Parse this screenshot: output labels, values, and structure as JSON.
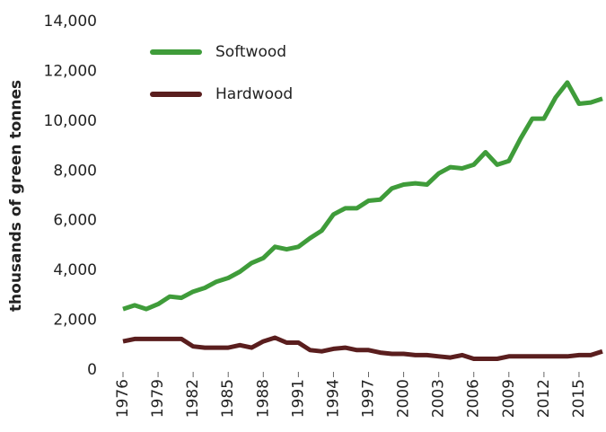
{
  "chart_data": {
    "type": "line",
    "y_label": "thousands of green tonnes",
    "x": [
      1976,
      1977,
      1978,
      1979,
      1980,
      1981,
      1982,
      1983,
      1984,
      1985,
      1986,
      1987,
      1988,
      1989,
      1990,
      1991,
      1992,
      1993,
      1994,
      1995,
      1996,
      1997,
      1998,
      1999,
      2000,
      2001,
      2002,
      2003,
      2004,
      2005,
      2006,
      2007,
      2008,
      2009,
      2010,
      2011,
      2012,
      2013,
      2014,
      2015,
      2016,
      2017
    ],
    "series": [
      {
        "name": "Softwood",
        "color": "#3f9c3a",
        "values": [
          2450,
          2600,
          2450,
          2650,
          2950,
          2900,
          3150,
          3300,
          3550,
          3700,
          3950,
          4300,
          4500,
          4950,
          4850,
          4950,
          5300,
          5600,
          6250,
          6500,
          6500,
          6800,
          6850,
          7300,
          7450,
          7500,
          7450,
          7900,
          8150,
          8100,
          8250,
          8750,
          8250,
          8400,
          9300,
          10100,
          10100,
          10950,
          11550,
          10700,
          10750,
          10900
        ]
      },
      {
        "name": "Hardwood",
        "color": "#5a1e1e",
        "values": [
          1150,
          1250,
          1250,
          1250,
          1250,
          1250,
          950,
          900,
          900,
          900,
          1000,
          900,
          1150,
          1300,
          1100,
          1100,
          800,
          750,
          850,
          900,
          800,
          800,
          700,
          650,
          650,
          600,
          600,
          550,
          500,
          600,
          450,
          450,
          450,
          550,
          550,
          550,
          550,
          550,
          550,
          600,
          600,
          750
        ]
      }
    ],
    "xlim": [
      1976,
      2017
    ],
    "xticks": [
      1976,
      1979,
      1982,
      1985,
      1988,
      1991,
      1994,
      1997,
      2000,
      2003,
      2006,
      2009,
      2012,
      2015
    ],
    "ylim": [
      0,
      14000
    ],
    "yticks": [
      0,
      {
        "value": 2000,
        "label": "2,000"
      },
      {
        "value": 4000,
        "label": "4,000"
      },
      {
        "value": 6000,
        "label": "6,000"
      },
      {
        "value": 8000,
        "label": "8,000"
      },
      {
        "value": 10000,
        "label": "10,000"
      },
      {
        "value": 12000,
        "label": "12,000"
      },
      {
        "value": 14000,
        "label": "14,000"
      }
    ],
    "grid": false,
    "legend": "upper left"
  }
}
